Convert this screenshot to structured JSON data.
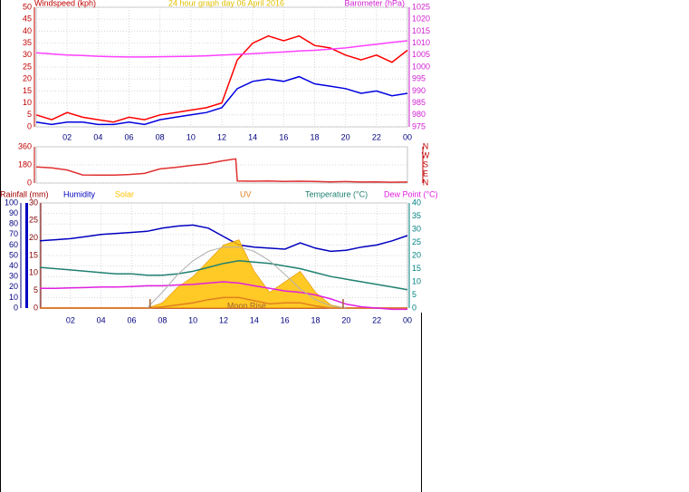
{
  "chart_data": [
    {
      "type": "line",
      "title": "24 hour graph day 06 April 2016",
      "title_color": "#e0c000",
      "ylabel": "Windspeed (kph)",
      "y2label": "Barometer (hPa)",
      "x": [
        0,
        1,
        2,
        3,
        4,
        5,
        6,
        7,
        8,
        9,
        10,
        11,
        12,
        13,
        14,
        15,
        16,
        17,
        18,
        19,
        20,
        21,
        22,
        23,
        24
      ],
      "xlim": [
        0,
        24
      ],
      "xticks": [
        {
          "value": 2,
          "label": "02"
        },
        {
          "value": 4,
          "label": "04"
        },
        {
          "value": 6,
          "label": "06"
        },
        {
          "value": 8,
          "label": "08"
        },
        10,
        12,
        14,
        16,
        18,
        20,
        22,
        {
          "value": 24,
          "label": "00"
        }
      ],
      "ylim": [
        0,
        50
      ],
      "yticks": [
        0,
        5,
        10,
        15,
        20,
        25,
        30,
        35,
        40,
        45,
        50
      ],
      "y2lim": [
        975,
        1025
      ],
      "y2ticks": [
        975,
        980,
        985,
        990,
        995,
        1000,
        1005,
        1010,
        1015,
        1020,
        1025
      ],
      "axis_colors": {
        "y": "#c00000",
        "y2": "#d020d0",
        "x": "#000080"
      },
      "grid": true,
      "series": [
        {
          "color": "#ff0000",
          "values": [
            5,
            3,
            6,
            4,
            3,
            2,
            4,
            3,
            5,
            6,
            7,
            8,
            10,
            28,
            35,
            38,
            36,
            38,
            34,
            33,
            30,
            28,
            30,
            27,
            32
          ]
        },
        {
          "color": "#0000e0",
          "values": [
            2,
            1,
            2,
            2,
            1,
            1,
            2,
            1,
            3,
            4,
            5,
            6,
            8,
            16,
            19,
            20,
            19,
            21,
            18,
            17,
            16,
            14,
            15,
            13,
            14
          ]
        },
        {
          "color": "#ff40ff",
          "axis": "y2",
          "values": [
            1006,
            1005.5,
            1005,
            1004.8,
            1004.5,
            1004.3,
            1004.2,
            1004.2,
            1004.3,
            1004.4,
            1004.5,
            1004.7,
            1005,
            1005.3,
            1005.6,
            1006,
            1006.3,
            1006.7,
            1007,
            1007.5,
            1008,
            1008.8,
            1009.5,
            1010.3,
            1011
          ]
        }
      ]
    },
    {
      "type": "line",
      "x": [
        0,
        1,
        2,
        3,
        4,
        5,
        6,
        7,
        8,
        9,
        10,
        11,
        12,
        12.9,
        13,
        14,
        15,
        16,
        17,
        18,
        19,
        20,
        21,
        22,
        23,
        24
      ],
      "xlim": [
        0,
        24
      ],
      "ylim": [
        0,
        360
      ],
      "yticks": [
        0,
        180,
        360
      ],
      "y2lim": [
        0,
        360
      ],
      "y2ticks": [
        {
          "value": 360,
          "label": "N"
        },
        {
          "value": 270,
          "label": "W"
        },
        {
          "value": 180,
          "label": "S"
        },
        {
          "value": 90,
          "label": "E"
        },
        {
          "value": 0,
          "label": "N"
        }
      ],
      "axis_colors": {
        "y": "#c00000",
        "y2": "#c00000"
      },
      "grid": true,
      "series": [
        {
          "color": "#e03030",
          "values": [
            160,
            150,
            130,
            80,
            78,
            78,
            85,
            95,
            140,
            155,
            175,
            190,
            220,
            240,
            20,
            18,
            20,
            15,
            18,
            15,
            12,
            14,
            10,
            12,
            8,
            10
          ]
        }
      ]
    },
    {
      "type": "line",
      "x": [
        0,
        1,
        2,
        3,
        4,
        5,
        6,
        7,
        8,
        9,
        10,
        11,
        12,
        13,
        14,
        15,
        16,
        17,
        18,
        19,
        20,
        21,
        22,
        23,
        24
      ],
      "xlim": [
        0,
        24
      ],
      "xticks": [
        {
          "value": 2,
          "label": "02"
        },
        {
          "value": 4,
          "label": "04"
        },
        {
          "value": 6,
          "label": "06"
        },
        {
          "value": 8,
          "label": "08"
        },
        10,
        12,
        14,
        16,
        18,
        20,
        22,
        {
          "value": 24,
          "label": "00"
        }
      ],
      "ylim": [
        0,
        100
      ],
      "yticks": [
        0,
        10,
        20,
        30,
        40,
        50,
        60,
        70,
        80,
        90,
        100
      ],
      "y2lim": [
        0,
        40
      ],
      "y2ticks": [
        0,
        5,
        10,
        15,
        20,
        25,
        30,
        35,
        40
      ],
      "y3lim": [
        0,
        30
      ],
      "y3ticks": [
        0,
        5,
        10,
        15,
        20,
        25,
        30
      ],
      "axis_colors": {
        "y": "#000080",
        "y2": "#008080",
        "y3": "#800000",
        "x": "#000080"
      },
      "grid": true,
      "annotations": [
        {
          "text": "Moon Rise",
          "x": 13.5
        }
      ],
      "xmarkers": [
        7.2,
        19.8
      ],
      "series": [
        {
          "name": "Rainfall (mm)",
          "color": "#a00000",
          "axis": "y3",
          "values": [
            0,
            0,
            0,
            0,
            0,
            0,
            0,
            0,
            0,
            0,
            0,
            0,
            0,
            0,
            0,
            0,
            0,
            0,
            0,
            0,
            0,
            0,
            0,
            0,
            0
          ]
        },
        {
          "name": "Humidity",
          "color": "#0000c0",
          "values": [
            64,
            65,
            66,
            68,
            70,
            71,
            72,
            73,
            76,
            78,
            79,
            76,
            68,
            60,
            58,
            57,
            56,
            62,
            57,
            54,
            55,
            58,
            60,
            64,
            69
          ]
        },
        {
          "name": "Solar",
          "color": "#ffc000",
          "fill": true,
          "values": [
            0,
            0,
            0,
            0,
            0,
            0,
            0,
            0,
            5,
            20,
            30,
            45,
            60,
            65,
            35,
            15,
            25,
            35,
            15,
            3,
            0,
            0,
            0,
            0,
            0
          ]
        },
        {
          "name": "UV",
          "color": "#e08020",
          "values": [
            0,
            0,
            0,
            0,
            0,
            0,
            0,
            0,
            1,
            3,
            5,
            8,
            10,
            10,
            7,
            4,
            5,
            5,
            2,
            0,
            0,
            0,
            0,
            0,
            0
          ]
        },
        {
          "name": "Temperature (°C)",
          "color": "#208070",
          "axis": "y2",
          "values": [
            15.5,
            15,
            14.5,
            14,
            13.5,
            13,
            13,
            12.5,
            12.5,
            13,
            14,
            15.5,
            17,
            18,
            17.5,
            17,
            16,
            15,
            13.5,
            12,
            11,
            10,
            9,
            8,
            7
          ]
        },
        {
          "name": "Dew Point (°C)",
          "color": "#e020e0",
          "axis": "y2",
          "values": [
            7.5,
            7.5,
            7.7,
            7.8,
            8,
            8,
            8.2,
            8.5,
            8.5,
            8.8,
            9,
            9.5,
            10,
            9.5,
            8.5,
            7.5,
            6.5,
            6,
            5,
            3.5,
            1.5,
            0.5,
            0,
            -0.5,
            -0.5
          ]
        },
        {
          "color": "#b0b0b0",
          "values": [
            null,
            null,
            null,
            null,
            null,
            null,
            null,
            0,
            15,
            32,
            45,
            54,
            58,
            58,
            54,
            45,
            32,
            18,
            8,
            2,
            0,
            null,
            null,
            null,
            null
          ]
        }
      ]
    }
  ]
}
